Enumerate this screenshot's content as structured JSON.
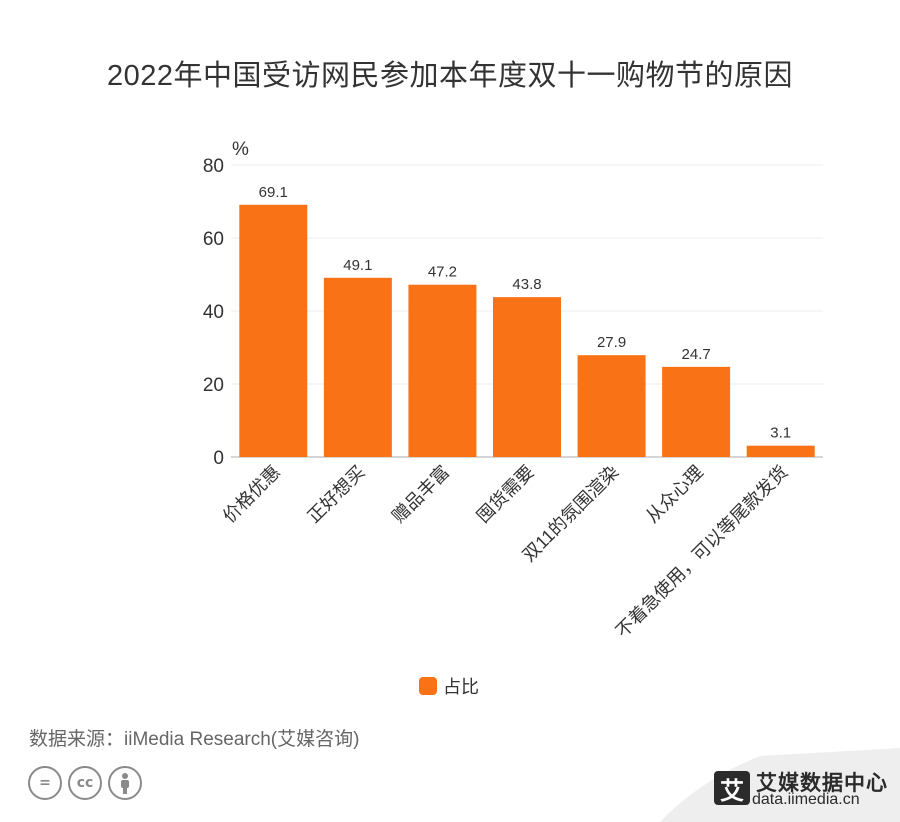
{
  "title": "2022年中国受访网民参加本年度双十一购物节的原因",
  "chart_data": {
    "type": "bar",
    "title": "2022年中国受访网民参加本年度双十一购物节的原因",
    "ylabel": "%",
    "xlabel": "",
    "categories": [
      "价格优惠",
      "正好想买",
      "赠品丰富",
      "囤货需要",
      "双11的氛围渲染",
      "从众心理",
      "不着急使用，可以等尾款发货"
    ],
    "series": [
      {
        "name": "占比",
        "values": [
          69.1,
          49.1,
          47.2,
          43.8,
          27.9,
          24.7,
          3.1
        ]
      }
    ],
    "ylim": [
      0,
      80
    ],
    "yticks": [
      0,
      20,
      40,
      60,
      80
    ],
    "grid": true,
    "legend_position": "bottom",
    "bar_color": "#f97316"
  },
  "legend": {
    "label": "占比",
    "color": "#f97316"
  },
  "source": "数据来源：iiMedia Research(艾媒咨询)",
  "brand": {
    "logo_char": "艾",
    "name": "艾媒数据中心",
    "url": "data.iimedia.cn"
  }
}
